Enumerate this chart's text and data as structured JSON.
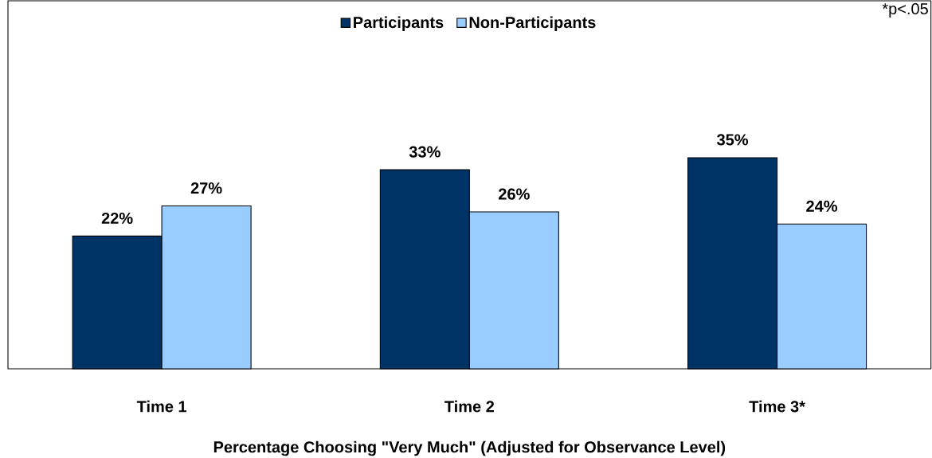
{
  "chart_data": {
    "type": "bar",
    "categories": [
      "Time 1",
      "Time 2",
      "Time 3*"
    ],
    "series": [
      {
        "name": "Participants",
        "color": "#003366",
        "values": [
          22,
          33,
          35
        ],
        "value_labels": [
          "22%",
          "33%",
          "35%"
        ]
      },
      {
        "name": "Non-Participants",
        "color": "#99ccff",
        "values": [
          27,
          26,
          24
        ],
        "value_labels": [
          "27%",
          "26%",
          "24%"
        ]
      }
    ],
    "xlabel": "Percentage Choosing \"Very Much\" (Adjusted for Observance Level)",
    "annotations": [
      "*p<.05"
    ],
    "ylim": [
      0,
      61
    ],
    "legend": "top",
    "grid": false,
    "tick_labels": "x"
  }
}
